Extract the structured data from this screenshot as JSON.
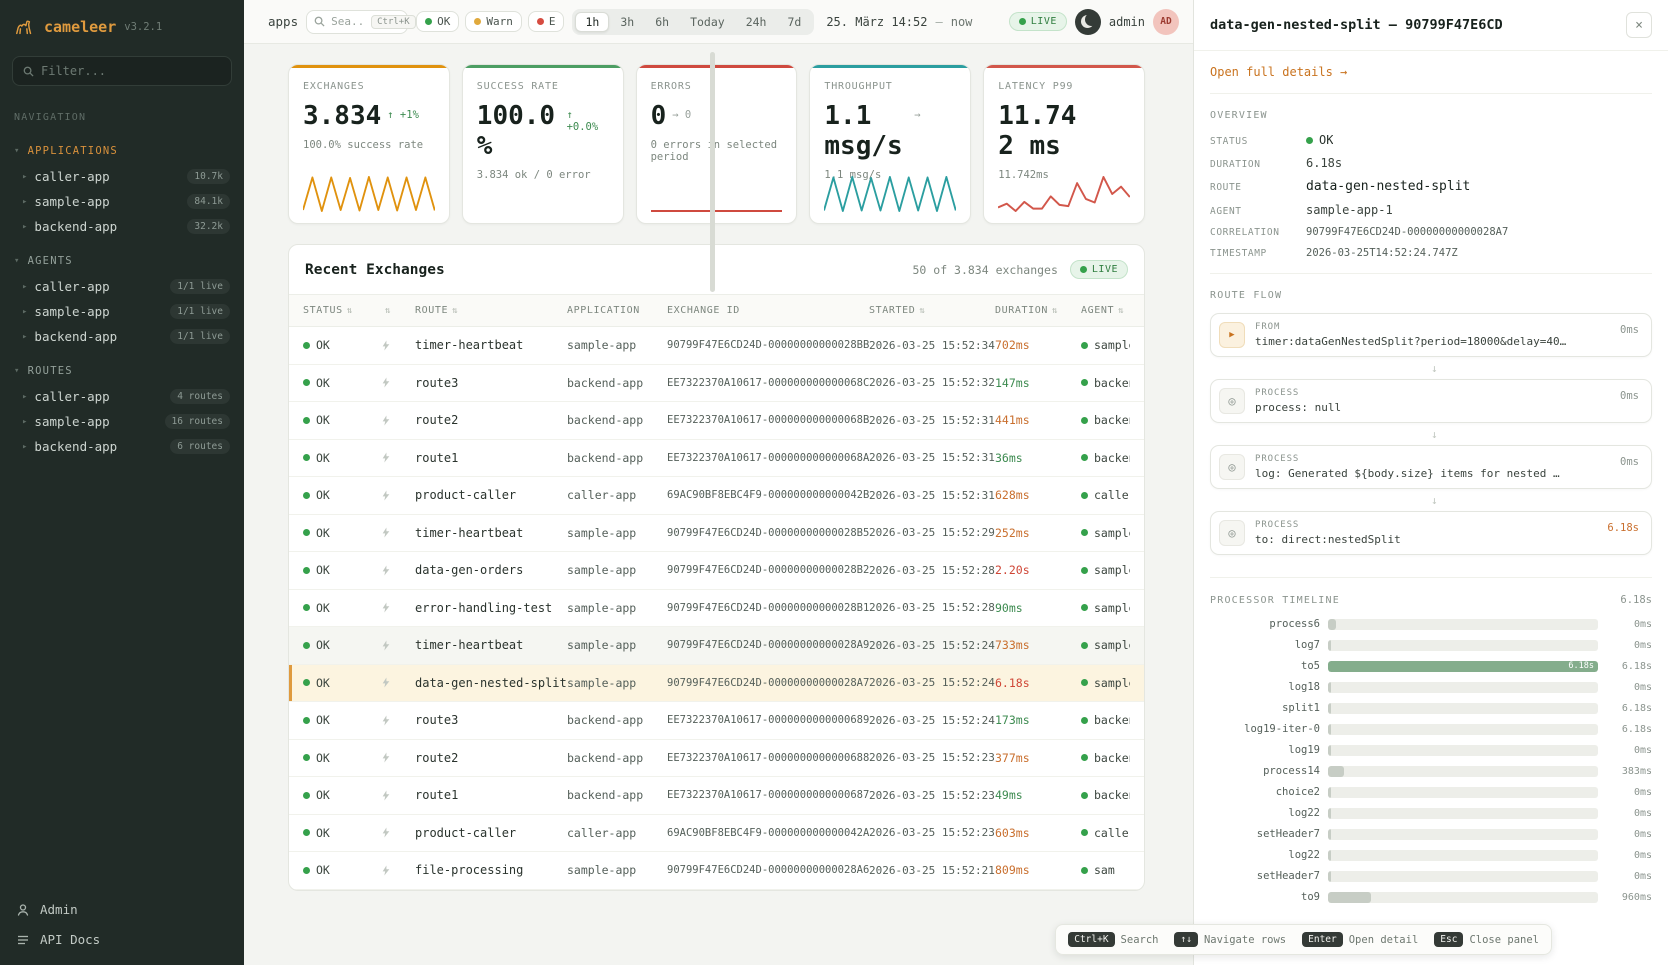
{
  "sidebar": {
    "logo": {
      "name": "cameleer",
      "version": "v3.2.1"
    },
    "filter_placeholder": "Filter...",
    "nav_label": "NAVIGATION",
    "sections": [
      {
        "label": "APPLICATIONS",
        "items": [
          {
            "label": "caller-app",
            "badge": "10.7k"
          },
          {
            "label": "sample-app",
            "badge": "84.1k"
          },
          {
            "label": "backend-app",
            "badge": "32.2k"
          }
        ]
      },
      {
        "label": "AGENTS",
        "items": [
          {
            "label": "caller-app",
            "badge": "1/1 live"
          },
          {
            "label": "sample-app",
            "badge": "1/1 live"
          },
          {
            "label": "backend-app",
            "badge": "1/1 live"
          }
        ]
      },
      {
        "label": "ROUTES",
        "items": [
          {
            "label": "caller-app",
            "badge": "4 routes"
          },
          {
            "label": "sample-app",
            "badge": "16 routes"
          },
          {
            "label": "backend-app",
            "badge": "6 routes"
          }
        ]
      }
    ],
    "footer": [
      {
        "label": "Admin"
      },
      {
        "label": "API Docs"
      }
    ]
  },
  "topbar": {
    "context": "apps",
    "search_placeholder": "Sea...",
    "search_shortcut": "Ctrl+K",
    "chips": [
      {
        "label": "OK",
        "kind": "ok"
      },
      {
        "label": "Warn",
        "kind": "warn"
      },
      {
        "label": "E",
        "kind": "err"
      }
    ],
    "ranges": [
      {
        "label": "1h",
        "state": "active"
      },
      {
        "label": "3h",
        "state": ""
      },
      {
        "label": "6h",
        "state": ""
      },
      {
        "label": "Today",
        "state": ""
      },
      {
        "label": "24h",
        "state": ""
      },
      {
        "label": "7d",
        "state": ""
      }
    ],
    "date": "25. März 14:52",
    "separator": "—",
    "now_label": "now",
    "live": "LIVE",
    "user": "admin",
    "avatar": "AD"
  },
  "stats": [
    {
      "title": "EXCHANGES",
      "value": "3.834",
      "trend": "↑ +1%",
      "trend_class": "up",
      "sub": "100.0% success rate",
      "accent": "#e0920e",
      "spark": [
        20,
        85,
        18,
        85,
        20,
        84,
        19,
        86,
        20,
        85,
        19,
        85,
        20,
        85,
        19
      ]
    },
    {
      "title": "SUCCESS RATE",
      "value": "100.0%",
      "trend": "↑ +0.0%",
      "trend_class": "up",
      "sub": "3.834 ok / 0 error",
      "accent": "#4c9e63",
      "spark": []
    },
    {
      "title": "ERRORS",
      "value": "0",
      "trend": "→ 0",
      "trend_class": "flat",
      "sub": "0 errors in selected period",
      "accent": "#cf4a3f",
      "spark": [
        5,
        5,
        5,
        5,
        5
      ]
    },
    {
      "title": "THROUGHPUT",
      "value": "1.1 msg/s",
      "trend": "→",
      "trend_class": "flat",
      "sub": "1.1 msg/s",
      "accent": "#2b9ea0",
      "spark": [
        15,
        82,
        14,
        83,
        15,
        81,
        15,
        83,
        14,
        82,
        15,
        82,
        14,
        83,
        15
      ]
    },
    {
      "title": "LATENCY P99",
      "value": "11.742 ms",
      "trend": "",
      "trend_class": "",
      "sub": "11.742ms",
      "accent": "#d2574b",
      "spark": [
        38,
        44,
        32,
        47,
        36,
        36,
        56,
        42,
        40,
        78,
        52,
        46,
        88,
        60,
        72,
        55
      ]
    }
  ],
  "table": {
    "title": "Recent Exchanges",
    "summary": "50 of 3.834 exchanges",
    "live": "LIVE",
    "columns": [
      {
        "label": "STATUS",
        "sort": "sortable"
      },
      {
        "label": "",
        "sort": "sortable"
      },
      {
        "label": "ROUTE",
        "sort": "sortable"
      },
      {
        "label": "APPLICATION",
        "sort": ""
      },
      {
        "label": "EXCHANGE ID",
        "sort": ""
      },
      {
        "label": "STARTED",
        "sort": "sortable"
      },
      {
        "label": "DURATION",
        "sort": "sortable"
      },
      {
        "label": "AGENT",
        "sort": "sortable"
      }
    ],
    "rows": [
      {
        "status": "OK",
        "route": "timer-heartbeat",
        "app": "sample-app",
        "id": "90799F47E6CD24D-00000000000028BB",
        "started": "2026-03-25 15:52:34",
        "duration": "702ms",
        "dur_class": "med",
        "agent": "sample",
        "state": ""
      },
      {
        "status": "OK",
        "route": "route3",
        "app": "backend-app",
        "id": "EE7322370A10617-000000000000068C",
        "started": "2026-03-25 15:52:32",
        "duration": "147ms",
        "dur_class": "fast",
        "agent": "backen",
        "state": ""
      },
      {
        "status": "OK",
        "route": "route2",
        "app": "backend-app",
        "id": "EE7322370A10617-000000000000068B",
        "started": "2026-03-25 15:52:31",
        "duration": "441ms",
        "dur_class": "med",
        "agent": "backen",
        "state": ""
      },
      {
        "status": "OK",
        "route": "route1",
        "app": "backend-app",
        "id": "EE7322370A10617-000000000000068A",
        "started": "2026-03-25 15:52:31",
        "duration": "36ms",
        "dur_class": "fast",
        "agent": "backen",
        "state": ""
      },
      {
        "status": "OK",
        "route": "product-caller",
        "app": "caller-app",
        "id": "69AC90BF8EBC4F9-000000000000042B",
        "started": "2026-03-25 15:52:31",
        "duration": "628ms",
        "dur_class": "med",
        "agent": "caller",
        "state": ""
      },
      {
        "status": "OK",
        "route": "timer-heartbeat",
        "app": "sample-app",
        "id": "90799F47E6CD24D-00000000000028B5",
        "started": "2026-03-25 15:52:29",
        "duration": "252ms",
        "dur_class": "med",
        "agent": "sample",
        "state": ""
      },
      {
        "status": "OK",
        "route": "data-gen-orders",
        "app": "sample-app",
        "id": "90799F47E6CD24D-00000000000028B2",
        "started": "2026-03-25 15:52:28",
        "duration": "2.20s",
        "dur_class": "slow",
        "agent": "sample",
        "state": ""
      },
      {
        "status": "OK",
        "route": "error-handling-test",
        "app": "sample-app",
        "id": "90799F47E6CD24D-00000000000028B1",
        "started": "2026-03-25 15:52:28",
        "duration": "90ms",
        "dur_class": "fast",
        "agent": "sample",
        "state": ""
      },
      {
        "status": "OK",
        "route": "timer-heartbeat",
        "app": "sample-app",
        "id": "90799F47E6CD24D-00000000000028A9",
        "started": "2026-03-25 15:52:24",
        "duration": "733ms",
        "dur_class": "med",
        "agent": "sample",
        "state": "hover"
      },
      {
        "status": "OK",
        "route": "data-gen-nested-split",
        "app": "sample-app",
        "id": "90799F47E6CD24D-00000000000028A7",
        "started": "2026-03-25 15:52:24",
        "duration": "6.18s",
        "dur_class": "slow",
        "agent": "sample",
        "state": "selected"
      },
      {
        "status": "OK",
        "route": "route3",
        "app": "backend-app",
        "id": "EE7322370A10617-0000000000000689",
        "started": "2026-03-25 15:52:24",
        "duration": "173ms",
        "dur_class": "fast",
        "agent": "backen",
        "state": ""
      },
      {
        "status": "OK",
        "route": "route2",
        "app": "backend-app",
        "id": "EE7322370A10617-0000000000000688",
        "started": "2026-03-25 15:52:23",
        "duration": "377ms",
        "dur_class": "med",
        "agent": "backen",
        "state": ""
      },
      {
        "status": "OK",
        "route": "route1",
        "app": "backend-app",
        "id": "EE7322370A10617-0000000000000687",
        "started": "2026-03-25 15:52:23",
        "duration": "49ms",
        "dur_class": "fast",
        "agent": "backen",
        "state": ""
      },
      {
        "status": "OK",
        "route": "product-caller",
        "app": "caller-app",
        "id": "69AC90BF8EBC4F9-000000000000042A",
        "started": "2026-03-25 15:52:23",
        "duration": "603ms",
        "dur_class": "med",
        "agent": "caller",
        "state": ""
      },
      {
        "status": "OK",
        "route": "file-processing",
        "app": "sample-app",
        "id": "90799F47E6CD24D-00000000000028A6",
        "started": "2026-03-25 15:52:21",
        "duration": "809ms",
        "dur_class": "med",
        "agent": "sam",
        "state": ""
      }
    ]
  },
  "panel": {
    "title": "data-gen-nested-split — 90799F47E6CD",
    "details_link": "Open full details →",
    "overview": {
      "label": "OVERVIEW",
      "fields": [
        {
          "label": "STATUS",
          "value": "OK",
          "kind": "status"
        },
        {
          "label": "DURATION",
          "value": "6.18s",
          "kind": "plain"
        },
        {
          "label": "ROUTE",
          "value": "data-gen-nested-split",
          "kind": "strong"
        },
        {
          "label": "AGENT",
          "value": "sample-app-1",
          "kind": "plain"
        },
        {
          "label": "CORRELATION",
          "value": "90799F47E6CD24D-00000000000028A7",
          "kind": "mono-sm"
        },
        {
          "label": "TIMESTAMP",
          "value": "2026-03-25T14:52:24.747Z",
          "kind": "mono-sm"
        }
      ]
    },
    "flow": {
      "label": "ROUTE FLOW",
      "steps": [
        {
          "kind": "FROM",
          "icon": "from",
          "text": "timer:dataGenNestedSplit?period=18000&delay=40…",
          "time": "0ms",
          "time_class": ""
        },
        {
          "kind": "PROCESS",
          "icon": "process",
          "text": "process: null",
          "time": "0ms",
          "time_class": ""
        },
        {
          "kind": "PROCESS",
          "icon": "process",
          "text": "log: Generated ${body.size} items for nested …",
          "time": "0ms",
          "time_class": ""
        },
        {
          "kind": "PROCESS",
          "icon": "process",
          "text": "to: direct:nestedSplit",
          "time": "6.18s",
          "time_class": "slow"
        }
      ]
    },
    "timeline": {
      "label": "PROCESSOR TIMELINE",
      "total": "6.18s",
      "rows": [
        {
          "label": "process6",
          "value": "0ms",
          "fill": 3,
          "bar": "",
          "badge": ""
        },
        {
          "label": "log7",
          "value": "0ms",
          "fill": 1,
          "bar": "",
          "badge": ""
        },
        {
          "label": "to5",
          "value": "6.18s",
          "fill": 100,
          "bar": "hl",
          "badge": "6.18s"
        },
        {
          "label": "log18",
          "value": "0ms",
          "fill": 1,
          "bar": "",
          "badge": ""
        },
        {
          "label": "split1",
          "value": "6.18s",
          "fill": 1,
          "bar": "",
          "badge": ""
        },
        {
          "label": "log19-iter-0",
          "value": "6.18s",
          "fill": 1,
          "bar": "",
          "badge": ""
        },
        {
          "label": "log19",
          "value": "0ms",
          "fill": 1,
          "bar": "",
          "badge": ""
        },
        {
          "label": "process14",
          "value": "383ms",
          "fill": 6,
          "bar": "",
          "badge": ""
        },
        {
          "label": "choice2",
          "value": "0ms",
          "fill": 1,
          "bar": "",
          "badge": ""
        },
        {
          "label": "log22",
          "value": "0ms",
          "fill": 1,
          "bar": "",
          "badge": ""
        },
        {
          "label": "setHeader7",
          "value": "0ms",
          "fill": 1,
          "bar": "",
          "badge": ""
        },
        {
          "label": "log22",
          "value": "0ms",
          "fill": 1,
          "bar": "",
          "badge": ""
        },
        {
          "label": "setHeader7",
          "value": "0ms",
          "fill": 1,
          "bar": "",
          "badge": ""
        },
        {
          "label": "to9",
          "value": "960ms",
          "fill": 16,
          "bar": "",
          "badge": ""
        }
      ]
    }
  },
  "hints": [
    {
      "key": "Ctrl+K",
      "label": "Search"
    },
    {
      "key": "↑↓",
      "label": "Navigate rows"
    },
    {
      "key": "Enter",
      "label": "Open detail"
    },
    {
      "key": "Esc",
      "label": "Close panel"
    }
  ]
}
